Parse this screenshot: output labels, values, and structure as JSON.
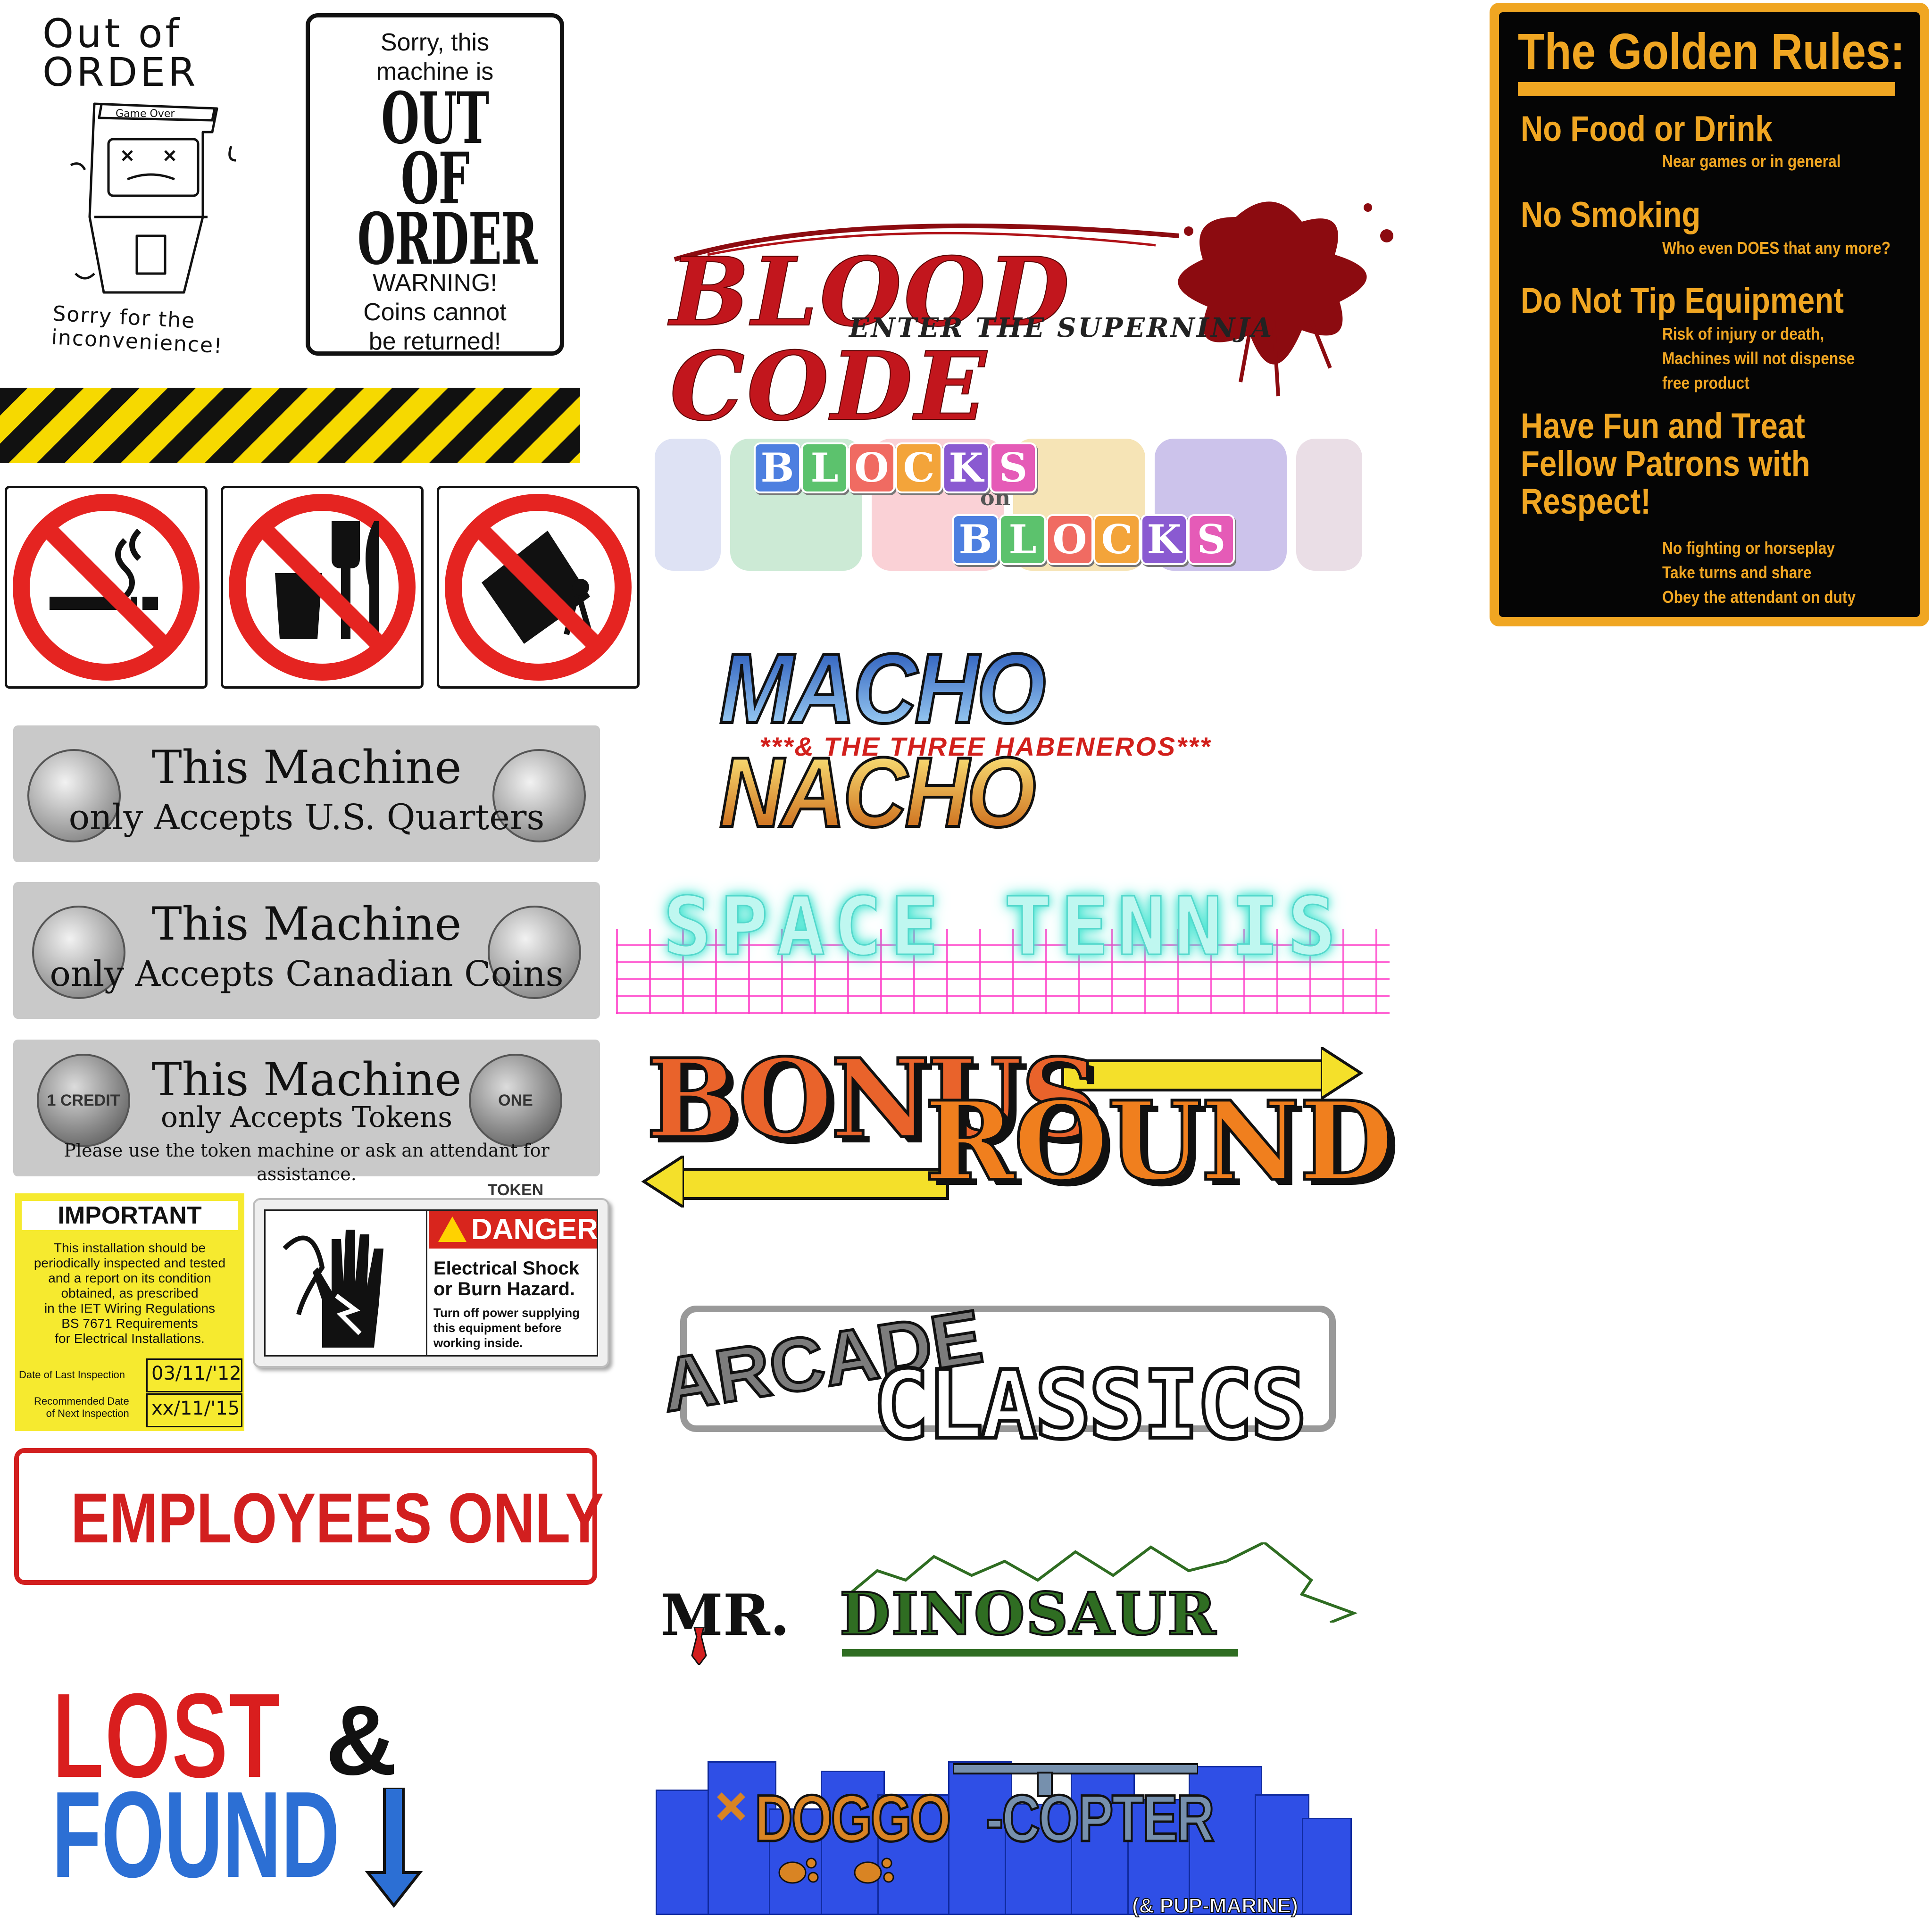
{
  "out_of_order_sketch": {
    "title_line1": "Out of",
    "title_line2": "ORDER",
    "screen_label": "Game Over",
    "footer_line1": "Sorry for the",
    "footer_line2": "inconvenience!"
  },
  "sorry_sign": {
    "line1": "Sorry, this",
    "line2": "machine is",
    "big1": "OUT",
    "big2": "OF",
    "big3": "ORDER",
    "warn1": "WARNING!",
    "warn2": "Coins cannot",
    "warn3": "be returned!"
  },
  "prohibition_icons": [
    "no-smoking-icon",
    "no-food-drink-icon",
    "no-tipping-icon"
  ],
  "coin_plates": [
    {
      "line1": "This Machine",
      "line2": "only Accepts U.S. Quarters"
    },
    {
      "line1": "This Machine",
      "line2": "only Accepts Canadian Coins"
    },
    {
      "line1": "This Machine",
      "line2": "only Accepts Tokens",
      "line3": "Please use the token machine or ask an attendant for assistance.",
      "coin_left": "1 CREDIT",
      "coin_right": "ONE TOKEN"
    }
  ],
  "important": {
    "header": "IMPORTANT",
    "body": [
      "This installation should be",
      "periodically inspected and tested",
      "and a report on its condition",
      "obtained, as prescribed",
      "in the IET Wiring Regulations",
      "BS 7671 Requirements",
      "for Electrical Installations."
    ],
    "last_label": "Date of Last Inspection",
    "last_value": "03/11/'12",
    "next_label_1": "Recommended Date",
    "next_label_2": "of Next Inspection",
    "next_value": "xx/11/'15"
  },
  "danger": {
    "header": "DANGER",
    "title1": "Electrical Shock",
    "title2": "or Burn Hazard.",
    "body1": "Turn off power supplying",
    "body2": "this equipment before",
    "body3": "working inside."
  },
  "employees_only": "EMPLOYEES ONLY",
  "lost_found": {
    "lost": "LOST",
    "amp": "&",
    "found": "FOUND"
  },
  "logos": {
    "blood_code": {
      "title": "BLOOD CODE",
      "subtitle": "ENTER THE SUPERNINJA"
    },
    "blocks_on_blocks": {
      "word1": [
        "B",
        "L",
        "O",
        "C",
        "K",
        "S"
      ],
      "on": "on",
      "word2": [
        "B",
        "L",
        "O",
        "C",
        "K",
        "S"
      ],
      "colors": [
        "#4d7fe0",
        "#5cc26d",
        "#f06b62",
        "#f3a43a",
        "#8a5ad1",
        "#e55bb7"
      ]
    },
    "macho_nacho": {
      "title": "MACHO NACHO",
      "subtitle": "***& THE THREE HABENEROS***"
    },
    "space_tennis": {
      "title": "SPACE TENNIS"
    },
    "bonus_round": {
      "word1": "BONUS",
      "word2": "ROUND"
    },
    "arcade_classics": {
      "word1": "ARCADE",
      "word2": "CLASSICS"
    },
    "mr_dinosaur": {
      "mr": "MR.",
      "dino": "DINOSAUR"
    },
    "doggo_copter": {
      "doggo": "DOGGO",
      "copter": "-COPTER",
      "subtitle": "(& PUP-MARINE)"
    }
  },
  "golden_rules": {
    "title": "The Golden Rules:",
    "rules": [
      {
        "heading": "No Food or Drink",
        "notes": [
          "Near games or in general"
        ]
      },
      {
        "heading": "No Smoking",
        "notes": [
          "Who even DOES that any more?"
        ]
      },
      {
        "heading": "Do Not Tip Equipment",
        "notes": [
          "Risk of injury or death,",
          "Machines will not dispense",
          "free product"
        ]
      },
      {
        "heading_lines": [
          "Have Fun and Treat",
          "Fellow Patrons with",
          "Respect!"
        ],
        "notes": [
          "No fighting or horseplay",
          "Take turns and share",
          "Obey the attendant on duty"
        ]
      }
    ]
  },
  "colors": {
    "hazard_yellow": "#f6d900",
    "prohibit_red": "#e52421",
    "gold": "#f0a622",
    "employees_red": "#d21f1f",
    "lost_red": "#d91e1e",
    "found_blue": "#2c6fd4"
  }
}
